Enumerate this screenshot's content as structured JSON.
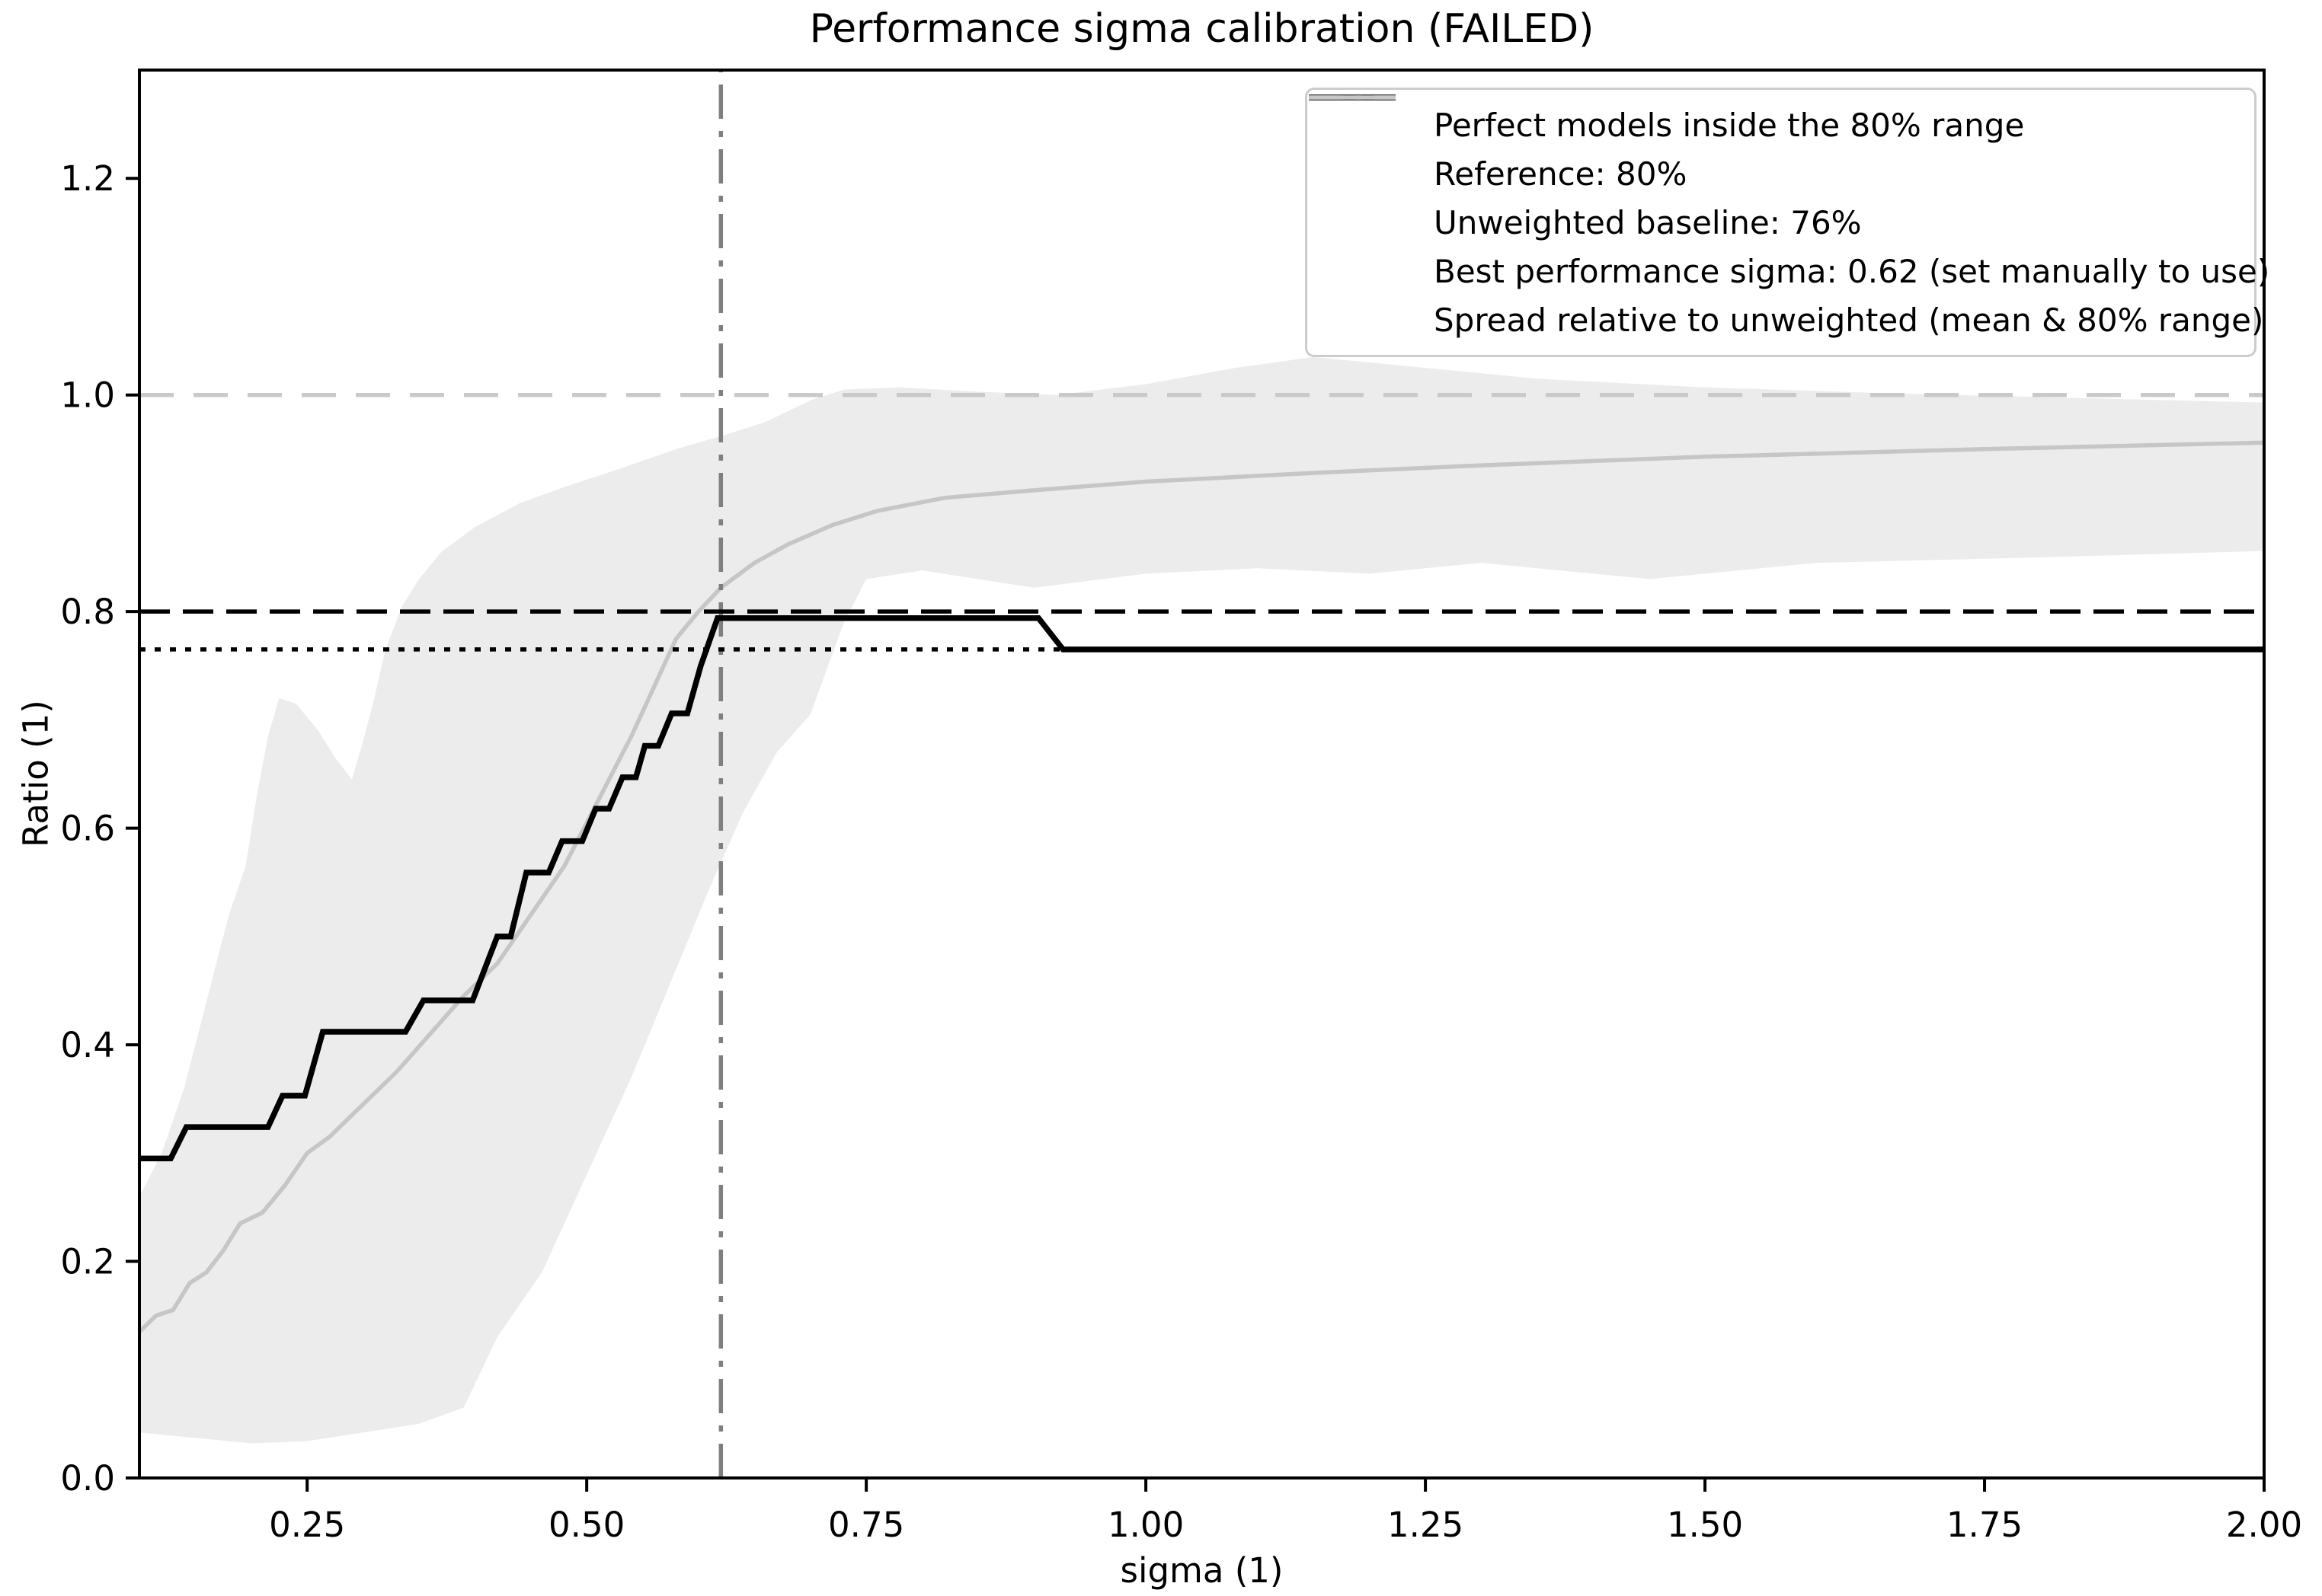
{
  "title": "Performance sigma calibration (FAILED)",
  "xlabel": "sigma (1)",
  "ylabel": "Ratio (1)",
  "chart_data": {
    "type": "line",
    "title": "Performance sigma calibration (FAILED)",
    "xlabel": "sigma (1)",
    "ylabel": "Ratio (1)",
    "xlim": [
      0.1,
      2.0
    ],
    "ylim": [
      0.0,
      1.3
    ],
    "grid": false,
    "legend_position": "upper right",
    "background": "#ffffff",
    "xticks": [
      {
        "value": 0.25,
        "label": "0.25"
      },
      {
        "value": 0.5,
        "label": "0.50"
      },
      {
        "value": 0.75,
        "label": "0.75"
      },
      {
        "value": 1.0,
        "label": "1.00"
      },
      {
        "value": 1.25,
        "label": "1.25"
      },
      {
        "value": 1.5,
        "label": "1.50"
      },
      {
        "value": 1.75,
        "label": "1.75"
      },
      {
        "value": 2.0,
        "label": "2.00"
      }
    ],
    "yticks": [
      {
        "value": 0.0,
        "label": "0.0"
      },
      {
        "value": 0.2,
        "label": "0.2"
      },
      {
        "value": 0.4,
        "label": "0.4"
      },
      {
        "value": 0.6,
        "label": "0.6"
      },
      {
        "value": 0.8,
        "label": "0.8"
      },
      {
        "value": 1.0,
        "label": "1.0"
      },
      {
        "value": 1.2,
        "label": "1.2"
      }
    ],
    "band": {
      "name": "spread-80pct-band",
      "color": "#ececec",
      "upper": [
        [
          0.1,
          0.26
        ],
        [
          0.12,
          0.3
        ],
        [
          0.14,
          0.36
        ],
        [
          0.16,
          0.44
        ],
        [
          0.18,
          0.52
        ],
        [
          0.195,
          0.565
        ],
        [
          0.205,
          0.63
        ],
        [
          0.215,
          0.685
        ],
        [
          0.225,
          0.72
        ],
        [
          0.24,
          0.715
        ],
        [
          0.26,
          0.69
        ],
        [
          0.275,
          0.665
        ],
        [
          0.29,
          0.645
        ],
        [
          0.3,
          0.68
        ],
        [
          0.31,
          0.72
        ],
        [
          0.32,
          0.765
        ],
        [
          0.335,
          0.805
        ],
        [
          0.35,
          0.83
        ],
        [
          0.37,
          0.855
        ],
        [
          0.4,
          0.878
        ],
        [
          0.44,
          0.9
        ],
        [
          0.48,
          0.915
        ],
        [
          0.53,
          0.932
        ],
        [
          0.58,
          0.95
        ],
        [
          0.62,
          0.962
        ],
        [
          0.66,
          0.975
        ],
        [
          0.7,
          0.995
        ],
        [
          0.73,
          1.005
        ],
        [
          0.78,
          1.007
        ],
        [
          0.85,
          1.003
        ],
        [
          0.92,
          1.0
        ],
        [
          1.0,
          1.01
        ],
        [
          1.08,
          1.025
        ],
        [
          1.15,
          1.035
        ],
        [
          1.25,
          1.025
        ],
        [
          1.35,
          1.015
        ],
        [
          1.5,
          1.007
        ],
        [
          1.65,
          1.002
        ],
        [
          1.8,
          0.998
        ],
        [
          2.0,
          0.993
        ]
      ],
      "lower": [
        [
          0.1,
          0.042
        ],
        [
          0.15,
          0.037
        ],
        [
          0.2,
          0.032
        ],
        [
          0.25,
          0.034
        ],
        [
          0.3,
          0.042
        ],
        [
          0.35,
          0.05
        ],
        [
          0.39,
          0.065
        ],
        [
          0.42,
          0.13
        ],
        [
          0.46,
          0.19
        ],
        [
          0.5,
          0.28
        ],
        [
          0.54,
          0.37
        ],
        [
          0.58,
          0.47
        ],
        [
          0.61,
          0.545
        ],
        [
          0.64,
          0.615
        ],
        [
          0.67,
          0.67
        ],
        [
          0.7,
          0.705
        ],
        [
          0.73,
          0.79
        ],
        [
          0.75,
          0.83
        ],
        [
          0.8,
          0.838
        ],
        [
          0.9,
          0.822
        ],
        [
          1.0,
          0.835
        ],
        [
          1.1,
          0.84
        ],
        [
          1.2,
          0.835
        ],
        [
          1.3,
          0.845
        ],
        [
          1.45,
          0.83
        ],
        [
          1.6,
          0.845
        ],
        [
          1.8,
          0.85
        ],
        [
          2.0,
          0.856
        ]
      ]
    },
    "series": [
      {
        "id": "perfect-models-line",
        "label": "Perfect models inside the 80% range",
        "color": "#000000",
        "width": 7.5,
        "dash": "solid",
        "z": 7,
        "points": [
          [
            0.1,
            0.295
          ],
          [
            0.128,
            0.295
          ],
          [
            0.142,
            0.324
          ],
          [
            0.215,
            0.324
          ],
          [
            0.228,
            0.353
          ],
          [
            0.248,
            0.353
          ],
          [
            0.264,
            0.412
          ],
          [
            0.338,
            0.412
          ],
          [
            0.354,
            0.441
          ],
          [
            0.398,
            0.441
          ],
          [
            0.42,
            0.5
          ],
          [
            0.432,
            0.5
          ],
          [
            0.446,
            0.559
          ],
          [
            0.466,
            0.559
          ],
          [
            0.478,
            0.588
          ],
          [
            0.496,
            0.588
          ],
          [
            0.508,
            0.618
          ],
          [
            0.52,
            0.618
          ],
          [
            0.532,
            0.647
          ],
          [
            0.544,
            0.647
          ],
          [
            0.552,
            0.676
          ],
          [
            0.564,
            0.676
          ],
          [
            0.576,
            0.706
          ],
          [
            0.59,
            0.706
          ],
          [
            0.602,
            0.75
          ],
          [
            0.617,
            0.794
          ],
          [
            0.904,
            0.794
          ],
          [
            0.926,
            0.765
          ],
          [
            2.0,
            0.765
          ]
        ]
      },
      {
        "id": "reference-80-line",
        "label": "Reference: 80%",
        "color": "#000000",
        "width": 5.5,
        "dash": "dashed",
        "z": 6,
        "points": [
          [
            0.1,
            0.8
          ],
          [
            2.0,
            0.8
          ]
        ]
      },
      {
        "id": "unweighted-baseline-line",
        "label": "Unweighted baseline: 76%",
        "color": "#000000",
        "width": 5.5,
        "dash": "dotted",
        "z": 5,
        "points": [
          [
            0.1,
            0.765
          ],
          [
            2.0,
            0.765
          ]
        ]
      },
      {
        "id": "best-sigma-line",
        "label": "Best performance sigma: 0.62 (set manually to use)",
        "color": "#7f7f7f",
        "width": 5.5,
        "dash": "dashdot",
        "z": 4,
        "points": [
          [
            0.62,
            0.0
          ],
          [
            0.62,
            1.3
          ]
        ]
      },
      {
        "id": "spread-mean-line",
        "label": "Spread relative to unweighted (mean & 80% range)",
        "color": "#c6c6c6",
        "width": 5.5,
        "dash": "solid",
        "z": 3,
        "points": [
          [
            0.1,
            0.135
          ],
          [
            0.115,
            0.15
          ],
          [
            0.13,
            0.155
          ],
          [
            0.145,
            0.18
          ],
          [
            0.16,
            0.19
          ],
          [
            0.175,
            0.21
          ],
          [
            0.19,
            0.235
          ],
          [
            0.21,
            0.245
          ],
          [
            0.23,
            0.27
          ],
          [
            0.25,
            0.3
          ],
          [
            0.27,
            0.315
          ],
          [
            0.3,
            0.345
          ],
          [
            0.33,
            0.375
          ],
          [
            0.36,
            0.41
          ],
          [
            0.39,
            0.445
          ],
          [
            0.42,
            0.475
          ],
          [
            0.45,
            0.52
          ],
          [
            0.48,
            0.565
          ],
          [
            0.51,
            0.625
          ],
          [
            0.54,
            0.685
          ],
          [
            0.56,
            0.73
          ],
          [
            0.58,
            0.775
          ],
          [
            0.6,
            0.8
          ],
          [
            0.62,
            0.822
          ],
          [
            0.65,
            0.845
          ],
          [
            0.68,
            0.862
          ],
          [
            0.72,
            0.88
          ],
          [
            0.76,
            0.893
          ],
          [
            0.82,
            0.905
          ],
          [
            0.9,
            0.912
          ],
          [
            1.0,
            0.92
          ],
          [
            1.15,
            0.928
          ],
          [
            1.3,
            0.935
          ],
          [
            1.5,
            0.943
          ],
          [
            1.75,
            0.95
          ],
          [
            2.0,
            0.956
          ]
        ]
      },
      {
        "id": "unity-reference-line",
        "label": null,
        "color": "#c9c9c9",
        "width": 5.5,
        "dash": "dashed_light",
        "z": 2,
        "points": [
          [
            0.1,
            1.0
          ],
          [
            2.0,
            1.0
          ]
        ]
      }
    ]
  }
}
